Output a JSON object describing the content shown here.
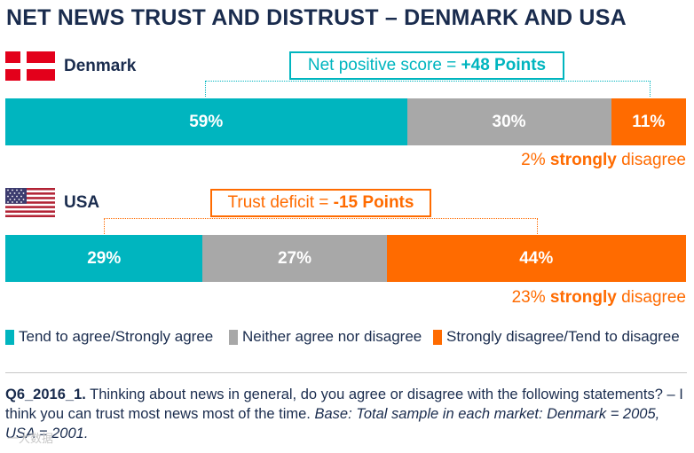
{
  "chart_data": {
    "type": "bar",
    "orientation": "horizontal",
    "stacked": true,
    "percent": true,
    "title": "NET NEWS TRUST AND DISTRUST – DENMARK AND USA",
    "categories": [
      "Denmark",
      "USA"
    ],
    "series": [
      {
        "name": "Tend to agree/Strongly agree",
        "color": "#00b5bf",
        "values": [
          59,
          29
        ],
        "labels": [
          "59%",
          "29%"
        ]
      },
      {
        "name": "Neither agree nor disagree",
        "color": "#a8a8a8",
        "values": [
          30,
          27
        ],
        "labels": [
          "30%",
          "27%"
        ]
      },
      {
        "name": "Strongly disagree/Tend to disagree",
        "color": "#ff6b00",
        "values": [
          11,
          44
        ],
        "labels": [
          "11%",
          "44%"
        ]
      }
    ],
    "annotations": [
      {
        "country": "Denmark",
        "callout_prefix": "Net positive score = ",
        "callout_value": "+48 Points",
        "color": "#00b5bf",
        "note_value": "2%",
        "note_bold": "strongly",
        "note_suffix": "disagree",
        "strongly_disagree": 2
      },
      {
        "country": "USA",
        "callout_prefix": "Trust deficit = ",
        "callout_value": "-15 Points",
        "color": "#ff6b00",
        "note_value": "23%",
        "note_bold": "strongly",
        "note_suffix": "disagree",
        "strongly_disagree": 23
      }
    ],
    "xlim": [
      0,
      100
    ]
  },
  "footnote": {
    "id": "Q6_2016_1.",
    "question": "Thinking about news in general, do you agree or disagree with the following statements? – I think you can trust most news most of the time.",
    "base": "Base: Total sample in each market: Denmark = 2005, USA = 2001."
  },
  "watermark": "一大数据"
}
